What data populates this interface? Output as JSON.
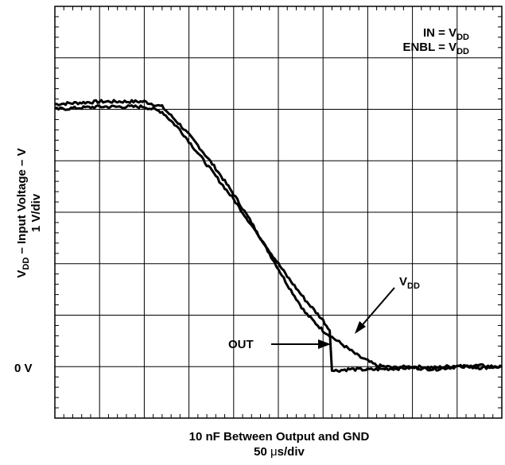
{
  "chart_data": {
    "type": "line",
    "conditions": {
      "line1_main": "IN = V",
      "line1_sub": "DD",
      "line2_main": "ENBL = V",
      "line2_sub": "DD"
    },
    "ylabel": {
      "line1_a": "V",
      "line1_sub": "DD",
      "line1_b": " – Input Voltage – V",
      "line2": "1 V/div"
    },
    "xlabel": {
      "line1": "10 nF Between Output and GND",
      "line2_a": "50 ",
      "line2_mu": "μ",
      "line2_b": "s/div"
    },
    "zero_label": "0 V",
    "xlim": [
      0,
      10
    ],
    "ylim": [
      -1,
      7
    ],
    "grid": true,
    "series": [
      {
        "name": "V",
        "name_sub": "DD",
        "x": [
          0,
          1,
          2,
          2.4,
          2.8,
          3.2,
          3.6,
          4.0,
          4.4,
          4.8,
          5.2,
          5.6,
          6.0,
          6.4,
          6.8,
          7.2,
          7.6,
          8.0,
          8.5,
          9.0,
          9.5,
          10.0
        ],
        "values": [
          5.1,
          5.15,
          5.15,
          5.05,
          4.7,
          4.3,
          3.85,
          3.35,
          2.8,
          2.2,
          1.6,
          1.05,
          0.7,
          0.45,
          0.2,
          0.02,
          -0.02,
          0.0,
          -0.02,
          0.02,
          -0.02,
          0.0
        ]
      },
      {
        "name": "OUT",
        "x": [
          0,
          1,
          2,
          2.4,
          2.8,
          3.2,
          3.6,
          4.0,
          4.4,
          4.8,
          5.2,
          5.6,
          6.0,
          6.15,
          6.2,
          6.25,
          6.6,
          7.0,
          7.5,
          8.0,
          8.5,
          9.0,
          9.5,
          10.0
        ],
        "values": [
          5.0,
          5.05,
          5.05,
          4.95,
          4.6,
          4.15,
          3.7,
          3.25,
          2.75,
          2.25,
          1.75,
          1.3,
          0.9,
          0.7,
          -0.05,
          -0.08,
          -0.05,
          -0.06,
          -0.04,
          -0.02,
          -0.05,
          0.0,
          0.02,
          -0.01
        ]
      }
    ]
  }
}
